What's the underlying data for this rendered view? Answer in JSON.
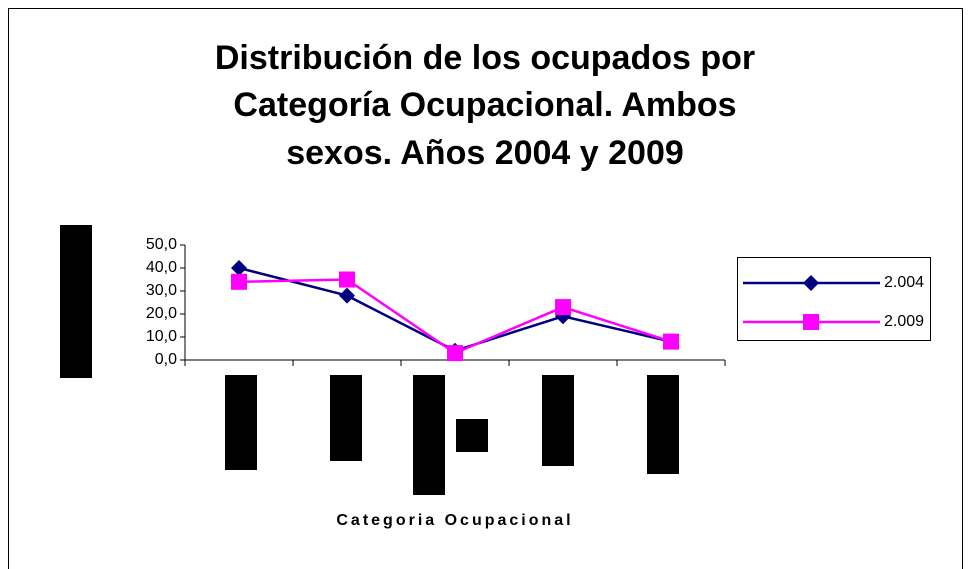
{
  "chart_data": {
    "type": "line",
    "title": [
      "Distribución de los ocupados por",
      "Categoría Ocupacional. Ambos",
      "sexos. Años 2004 y 2009"
    ],
    "x_label": "Categoria Ocupacional",
    "categories": [
      null,
      null,
      null,
      null,
      null
    ],
    "series": [
      {
        "name": "2.004",
        "color": "#000080",
        "marker": "diamond",
        "values": [
          40,
          28,
          4,
          19,
          8
        ]
      },
      {
        "name": "2.009",
        "color": "#ff00ff",
        "marker": "square",
        "values": [
          34,
          35,
          3,
          23,
          8
        ]
      }
    ],
    "ylim": [
      0,
      50
    ],
    "yticks": [
      {
        "value": 0,
        "label": "0,0"
      },
      {
        "value": 10,
        "label": "10,0"
      },
      {
        "value": 20,
        "label": "20,0"
      },
      {
        "value": 30,
        "label": "30,0"
      },
      {
        "value": 40,
        "label": "40,0"
      },
      {
        "value": 50,
        "label": "50,0"
      }
    ],
    "legend": "right"
  }
}
